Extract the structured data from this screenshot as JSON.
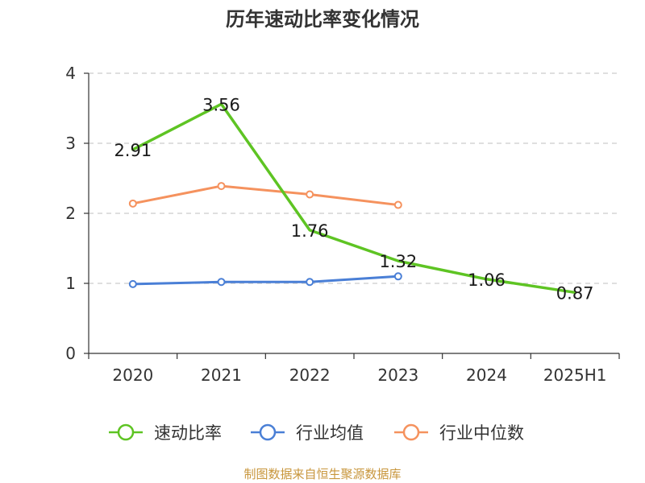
{
  "chart_data": {
    "type": "line",
    "title": "历年速动比率变化情况",
    "categories": [
      "2020",
      "2021",
      "2022",
      "2023",
      "2024",
      "2025H1"
    ],
    "ylim": [
      0,
      4
    ],
    "yticks": [
      0,
      1,
      2,
      3,
      4
    ],
    "grid": true,
    "legend_position": "bottom",
    "series": [
      {
        "name": "速动比率",
        "color": "#5ec423",
        "values": [
          2.91,
          3.56,
          1.76,
          1.32,
          1.06,
          0.87
        ],
        "show_labels": true,
        "markers": false
      },
      {
        "name": "行业均值",
        "color": "#4a7fd6",
        "values": [
          0.99,
          1.02,
          1.02,
          1.1,
          null,
          null
        ],
        "show_labels": false,
        "markers": true
      },
      {
        "name": "行业中位数",
        "color": "#f5925e",
        "values": [
          2.14,
          2.39,
          2.27,
          2.12,
          null,
          null
        ],
        "show_labels": false,
        "markers": true
      }
    ],
    "value_labels": [
      "2.91",
      "3.56",
      "1.76",
      "1.32",
      "1.06",
      "0.87"
    ],
    "source": "制图数据来自恒生聚源数据库"
  }
}
